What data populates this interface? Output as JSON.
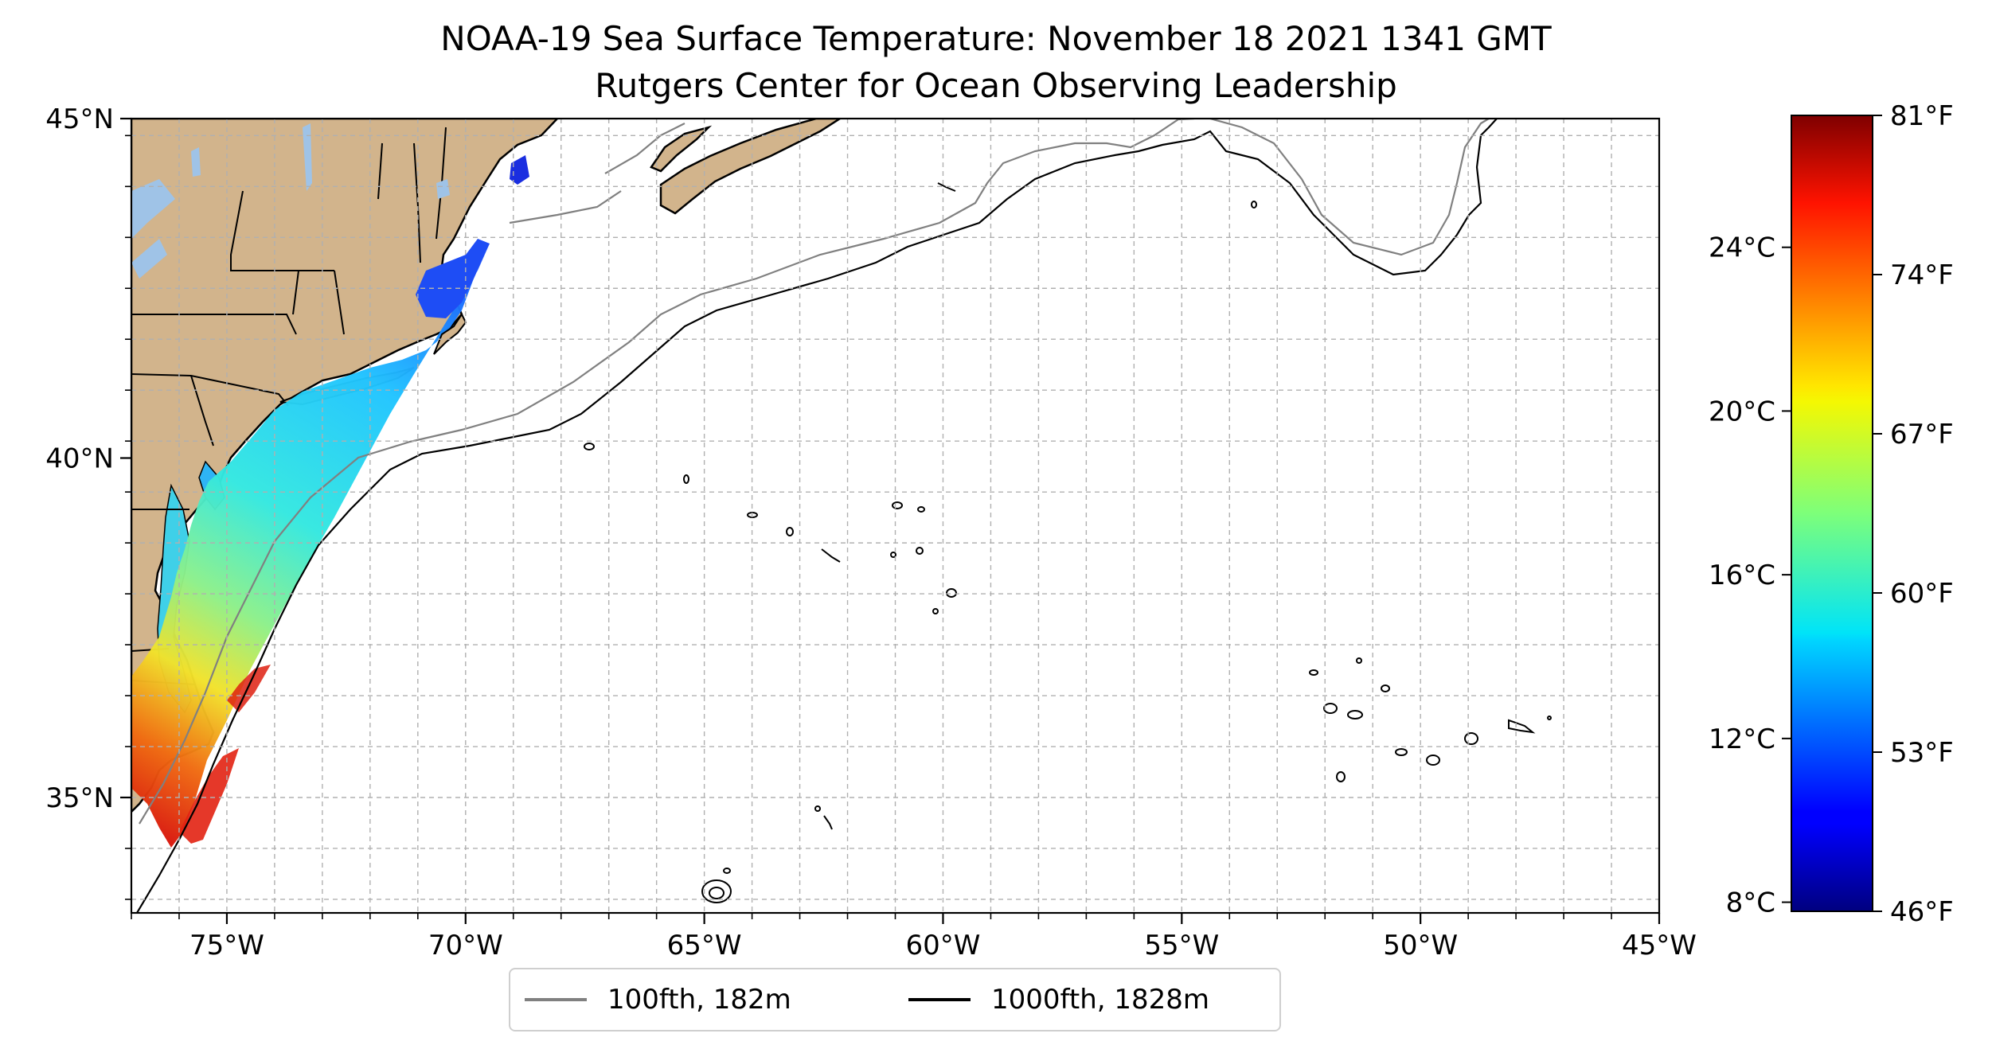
{
  "title": {
    "line1": "NOAA-19 Sea Surface Temperature: November 18 2021 1341 GMT",
    "line2": "Rutgers Center for Ocean Observing Leadership"
  },
  "map": {
    "extent": {
      "lon": [
        -77,
        -45
      ],
      "lat": [
        33.3,
        45
      ]
    },
    "land_color": "#d2b48c",
    "lake_color": "#9fc3e7",
    "lon_ticks": [
      {
        "value": -75,
        "label": "75°W"
      },
      {
        "value": -70,
        "label": "70°W"
      },
      {
        "value": -65,
        "label": "65°W"
      },
      {
        "value": -60,
        "label": "60°W"
      },
      {
        "value": -55,
        "label": "55°W"
      },
      {
        "value": -50,
        "label": "50°W"
      },
      {
        "value": -45,
        "label": "45°W"
      }
    ],
    "lat_ticks": [
      {
        "value": 45,
        "label": "45°N"
      },
      {
        "value": 40,
        "label": "40°N"
      },
      {
        "value": 35,
        "label": "35°N"
      }
    ],
    "grid": true,
    "grid_interval_deg": 1,
    "grid_style": "dashed",
    "isobath_100_color": "#808080",
    "isobath_1000_color": "#000000"
  },
  "colorbar": {
    "cmap": "jet",
    "range_f": [
      46,
      81
    ],
    "celsius_ticks": [
      {
        "value": 24,
        "label": "24°C"
      },
      {
        "value": 20,
        "label": "20°C"
      },
      {
        "value": 16,
        "label": "16°C"
      },
      {
        "value": 12,
        "label": "12°C"
      },
      {
        "value": 8,
        "label": "8°C"
      }
    ],
    "fahrenheit_ticks": [
      {
        "value": 81,
        "label": "81°F"
      },
      {
        "value": 74,
        "label": "74°F"
      },
      {
        "value": 67,
        "label": "67°F"
      },
      {
        "value": 60,
        "label": "60°F"
      },
      {
        "value": 53,
        "label": "53°F"
      },
      {
        "value": 46,
        "label": "46°F"
      }
    ]
  },
  "legend": {
    "items": [
      {
        "label": "100fth, 182m",
        "color": "#808080"
      },
      {
        "label": "1000fth, 1828m",
        "color": "#000000"
      }
    ],
    "placement": "bottom-center"
  }
}
